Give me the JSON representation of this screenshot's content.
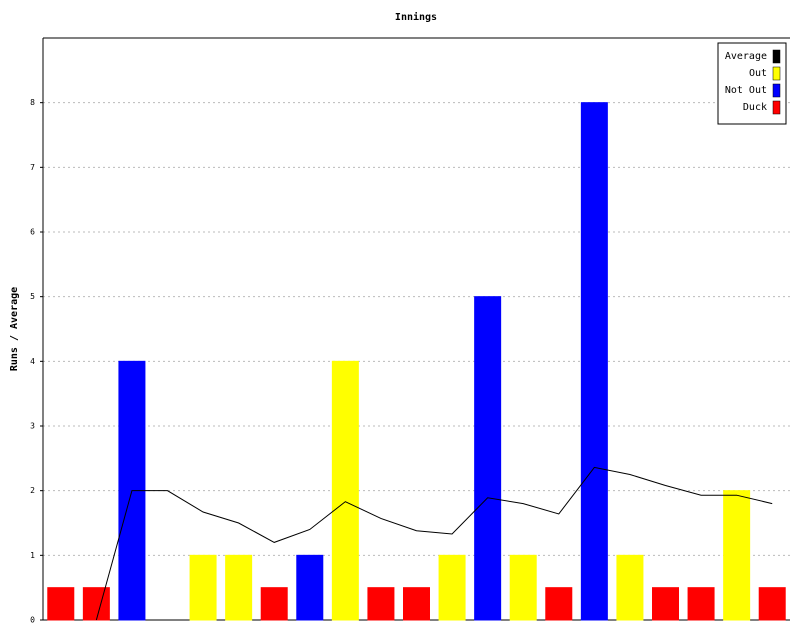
{
  "chart_data": {
    "type": "bar",
    "title": "Innings",
    "y_label": "Runs / Average",
    "categories": [
      null,
      null,
      null,
      null,
      null,
      null,
      null,
      null,
      null,
      null,
      null,
      null,
      null,
      null,
      null,
      null,
      null,
      null,
      null,
      null,
      null
    ],
    "series": [
      {
        "name": "Average",
        "type": "line",
        "color": "#000000",
        "values": [
          null,
          0,
          2,
          2,
          1.67,
          1.5,
          1.2,
          1.4,
          1.83,
          1.57,
          1.38,
          1.33,
          1.89,
          1.8,
          1.64,
          2.36,
          2.25,
          2.08,
          1.93,
          1.93,
          1.8
        ]
      },
      {
        "name": "Out",
        "color": "#ffff00",
        "values": [
          null,
          null,
          null,
          null,
          1,
          1,
          null,
          null,
          4,
          null,
          null,
          1,
          null,
          1,
          null,
          null,
          1,
          null,
          null,
          2,
          null
        ]
      },
      {
        "name": "Not Out",
        "color": "#0000ff",
        "values": [
          null,
          null,
          4,
          0,
          null,
          null,
          null,
          1,
          null,
          null,
          null,
          null,
          5,
          null,
          null,
          8,
          null,
          null,
          null,
          null,
          null
        ]
      },
      {
        "name": "Duck",
        "color": "#ff0000",
        "values": [
          0.5,
          0.5,
          null,
          null,
          null,
          null,
          0.5,
          null,
          null,
          0.5,
          0.5,
          null,
          null,
          null,
          0.5,
          null,
          null,
          0.5,
          0.5,
          null,
          0.5
        ]
      }
    ],
    "ylim": [
      0,
      9
    ],
    "yticks": [
      0,
      1,
      2,
      3,
      4,
      5,
      6,
      7,
      8
    ],
    "grid": true,
    "legend": "top-right"
  }
}
